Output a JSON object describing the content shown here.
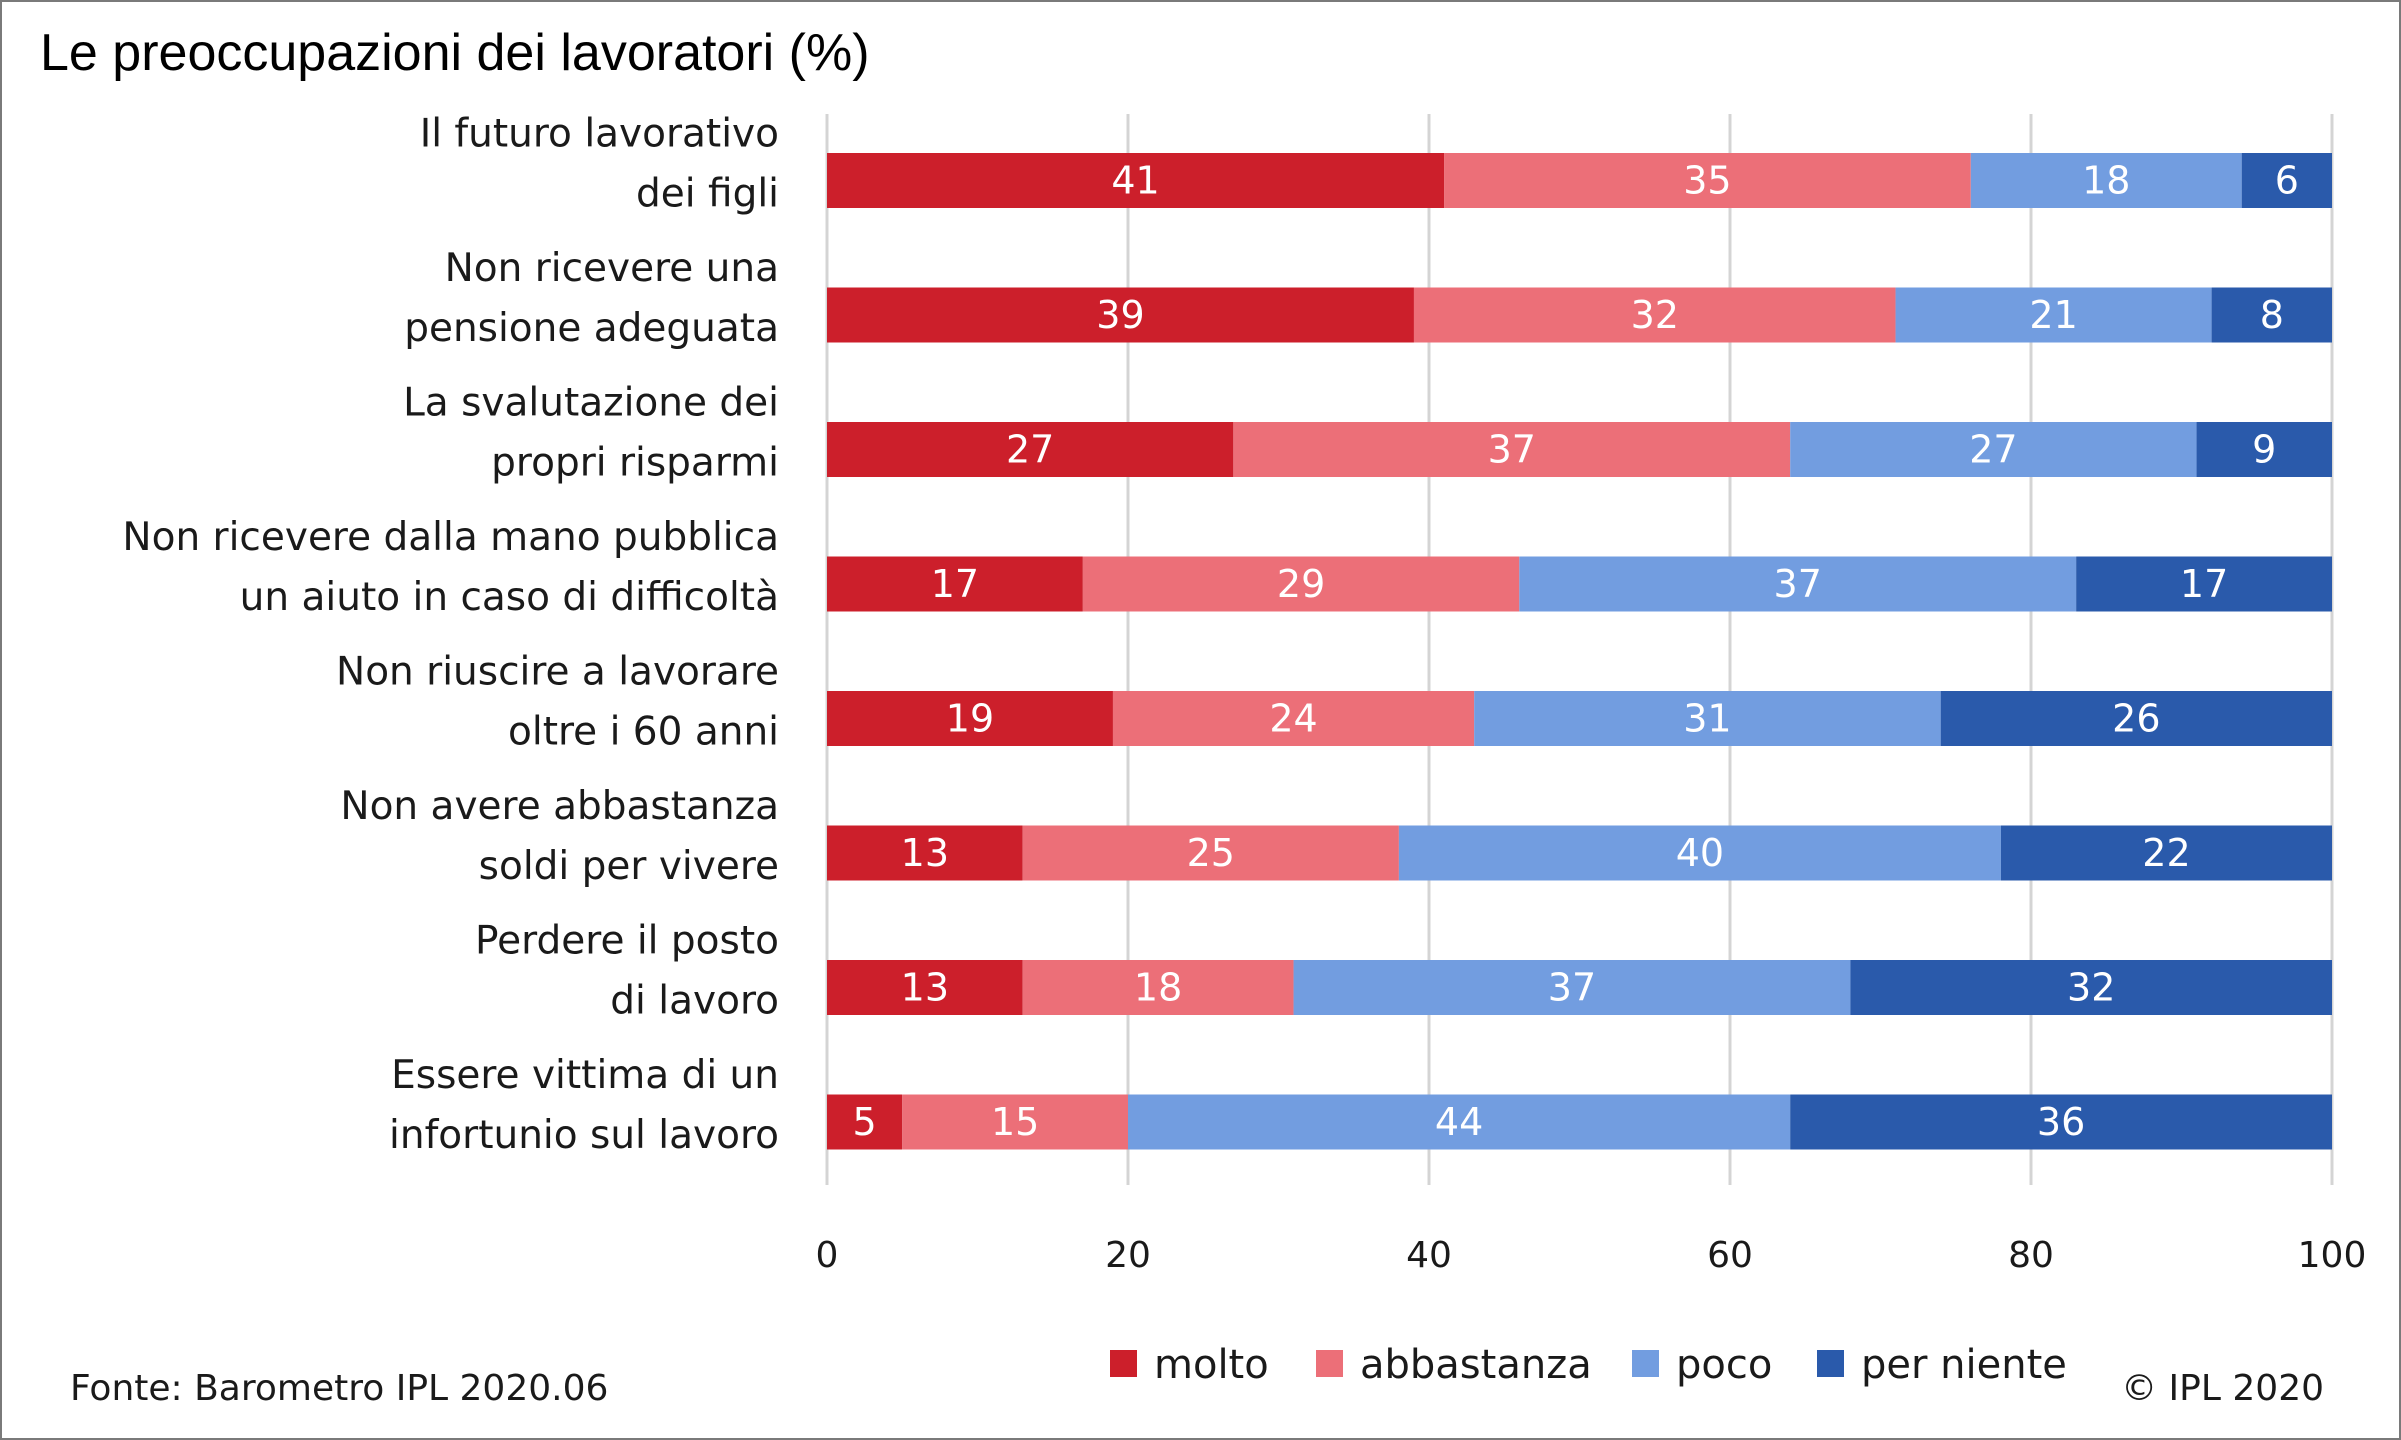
{
  "title": "Le preoccupazioni dei lavoratori (%)",
  "source": "Fonte: Barometro IPL 2020.06",
  "copyright": "© IPL 2020",
  "chart_data": {
    "type": "bar",
    "orientation": "horizontal",
    "stacked": true,
    "title": "Le preoccupazioni dei lavoratori (%)",
    "categories": [
      [
        "Il futuro lavorativo",
        "dei figli"
      ],
      [
        "Non ricevere una",
        "pensione adeguata"
      ],
      [
        "La svalutazione dei",
        "propri risparmi"
      ],
      [
        "Non ricevere dalla mano pubblica",
        "un aiuto in caso di difficoltà"
      ],
      [
        "Non riuscire a lavorare",
        "oltre i 60 anni"
      ],
      [
        "Non avere abbastanza",
        "soldi per vivere"
      ],
      [
        "Perdere il posto",
        "di lavoro"
      ],
      [
        "Essere vittima di un",
        "infortunio sul lavoro"
      ]
    ],
    "series": [
      {
        "name": "molto",
        "color": "#cc1f2b",
        "values": [
          41,
          39,
          27,
          17,
          19,
          13,
          13,
          5
        ]
      },
      {
        "name": "abbastanza",
        "color": "#ec6f78",
        "values": [
          35,
          32,
          37,
          29,
          24,
          25,
          18,
          15
        ]
      },
      {
        "name": "poco",
        "color": "#729de0",
        "values": [
          18,
          21,
          27,
          37,
          31,
          40,
          37,
          44
        ]
      },
      {
        "name": "per niente",
        "color": "#2a5aab",
        "values": [
          6,
          8,
          9,
          17,
          26,
          22,
          32,
          36
        ]
      }
    ],
    "xlim": [
      0,
      100
    ],
    "xticks": [
      0,
      20,
      40,
      60,
      80,
      100
    ],
    "grid": "vertical",
    "legend": "bottom"
  }
}
